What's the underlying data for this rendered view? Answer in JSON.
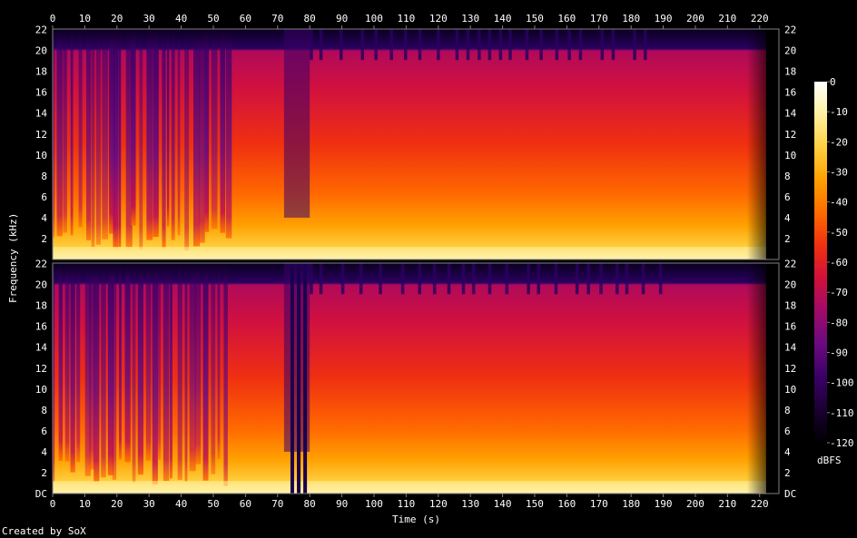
{
  "chart_data": {
    "type": "heatmap",
    "subtype": "spectrogram",
    "channels": 2,
    "xlabel": "Time (s)",
    "ylabel": "Frequency (kHz)",
    "xlim": [
      0,
      226
    ],
    "ylim": [
      0,
      22.05
    ],
    "x_ticks": [
      "0",
      "10",
      "20",
      "30",
      "40",
      "50",
      "60",
      "70",
      "80",
      "90",
      "100",
      "110",
      "120",
      "130",
      "140",
      "150",
      "160",
      "170",
      "180",
      "190",
      "200",
      "210",
      "220"
    ],
    "x_tick_values": [
      0,
      10,
      20,
      30,
      40,
      50,
      60,
      70,
      80,
      90,
      100,
      110,
      120,
      130,
      140,
      150,
      160,
      170,
      180,
      190,
      200,
      210,
      220
    ],
    "y_ticks_top": [
      "22",
      "20",
      "18",
      "16",
      "14",
      "12",
      "10",
      "8",
      "6",
      "4",
      "2"
    ],
    "y_ticks_bottom": [
      "22",
      "20",
      "18",
      "16",
      "14",
      "12",
      "10",
      "8",
      "6",
      "4",
      "2",
      "DC"
    ],
    "y_tick_values": [
      22,
      20,
      18,
      16,
      14,
      12,
      10,
      8,
      6,
      4,
      2,
      0
    ],
    "colorbar": {
      "label": "dBFS",
      "range": [
        -120,
        0
      ],
      "ticks": [
        "0",
        "-10",
        "-20",
        "-30",
        "-40",
        "-50",
        "-60",
        "-70",
        "-80",
        "-90",
        "-100",
        "-110",
        "-120"
      ],
      "tick_values": [
        0,
        -10,
        -20,
        -30,
        -40,
        -50,
        -60,
        -70,
        -80,
        -90,
        -100,
        -110,
        -120
      ],
      "colormap": [
        "#000000",
        "#1a0033",
        "#3b0066",
        "#6a0a80",
        "#a00a6a",
        "#d0103a",
        "#f03010",
        "#ff6a00",
        "#ffa000",
        "#ffd040",
        "#fff0a0",
        "#ffffff"
      ]
    },
    "energy_cutoff_khz": 20,
    "song_end_s": 222,
    "dropout_channel2_s": [
      74,
      76,
      78
    ]
  },
  "footer": {
    "credit": "Created by SoX"
  }
}
